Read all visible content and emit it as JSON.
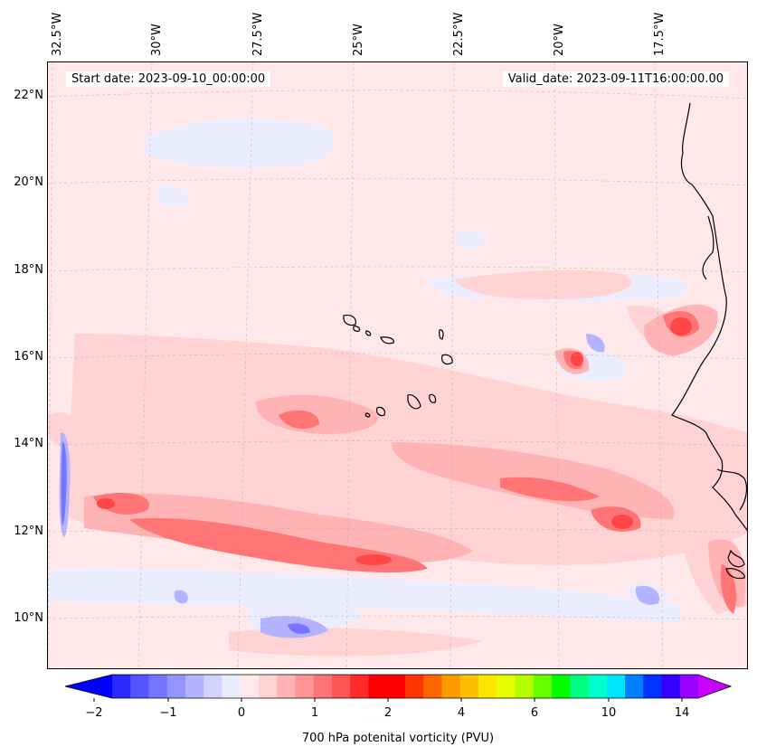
{
  "map": {
    "start_label": "Start date: 2023-09-10_00:00:00",
    "valid_label": "Valid_date: 2023-09-11T16:00:00.00",
    "lon_labels": [
      "32.5°W",
      "30°W",
      "27.5°W",
      "25°W",
      "22.5°W",
      "20°W",
      "17.5°W"
    ],
    "lat_labels": [
      "22°N",
      "20°N",
      "18°N",
      "16°N",
      "14°N",
      "12°N",
      "10°N"
    ],
    "background_color": "#ffe8ea"
  },
  "colorbar": {
    "label": "700 hPa potenital vorticity (PVU)",
    "ticks": [
      "−2",
      "−1",
      "0",
      "1",
      "2",
      "4",
      "6",
      "10",
      "14"
    ],
    "colors": [
      "#0000ff",
      "#2a2aff",
      "#5555ff",
      "#7575ff",
      "#9494ff",
      "#b3b3ff",
      "#d2d2ff",
      "#ececff",
      "#ffe8ea",
      "#ffd2d4",
      "#ffb3b5",
      "#ff9495",
      "#ff7576",
      "#ff5556",
      "#ff2a2b",
      "#ff0000",
      "#ff0000",
      "#ff3300",
      "#ff6600",
      "#ff9900",
      "#ffbf00",
      "#ffe600",
      "#e6ff00",
      "#b3ff00",
      "#66ff00",
      "#00ff00",
      "#00ff80",
      "#00ffcc",
      "#00e5ff",
      "#0080ff",
      "#0033ff",
      "#3300ff",
      "#9900ff",
      "#cc00ff"
    ]
  }
}
